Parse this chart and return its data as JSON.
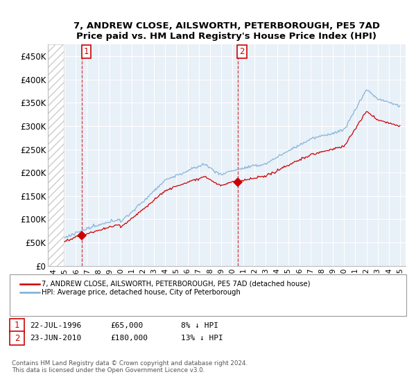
{
  "title": "7, ANDREW CLOSE, AILSWORTH, PETERBOROUGH, PE5 7AD",
  "subtitle": "Price paid vs. HM Land Registry's House Price Index (HPI)",
  "legend_line1": "7, ANDREW CLOSE, AILSWORTH, PETERBOROUGH, PE5 7AD (detached house)",
  "legend_line2": "HPI: Average price, detached house, City of Peterborough",
  "footer": "Contains HM Land Registry data © Crown copyright and database right 2024.\nThis data is licensed under the Open Government Licence v3.0.",
  "property_color": "#cc0000",
  "hpi_color": "#7aadd4",
  "ylim": [
    0,
    475000
  ],
  "yticks": [
    0,
    50000,
    100000,
    150000,
    200000,
    250000,
    300000,
    350000,
    400000,
    450000
  ],
  "ytick_labels": [
    "£0",
    "£50K",
    "£100K",
    "£150K",
    "£200K",
    "£250K",
    "£300K",
    "£350K",
    "£400K",
    "£450K"
  ],
  "sale1_year": 1996.55,
  "sale1_price": 65000,
  "sale2_year": 2010.48,
  "sale2_price": 180000,
  "xlim": [
    1993.5,
    2025.5
  ],
  "xticks": [
    1994,
    1995,
    1996,
    1997,
    1998,
    1999,
    2000,
    2001,
    2002,
    2003,
    2004,
    2005,
    2006,
    2007,
    2008,
    2009,
    2010,
    2011,
    2012,
    2013,
    2014,
    2015,
    2016,
    2017,
    2018,
    2019,
    2020,
    2021,
    2022,
    2023,
    2024,
    2025
  ],
  "bg_color": "#e8f0f8",
  "grid_color": "#ffffff",
  "hatch_color": "#cccccc"
}
